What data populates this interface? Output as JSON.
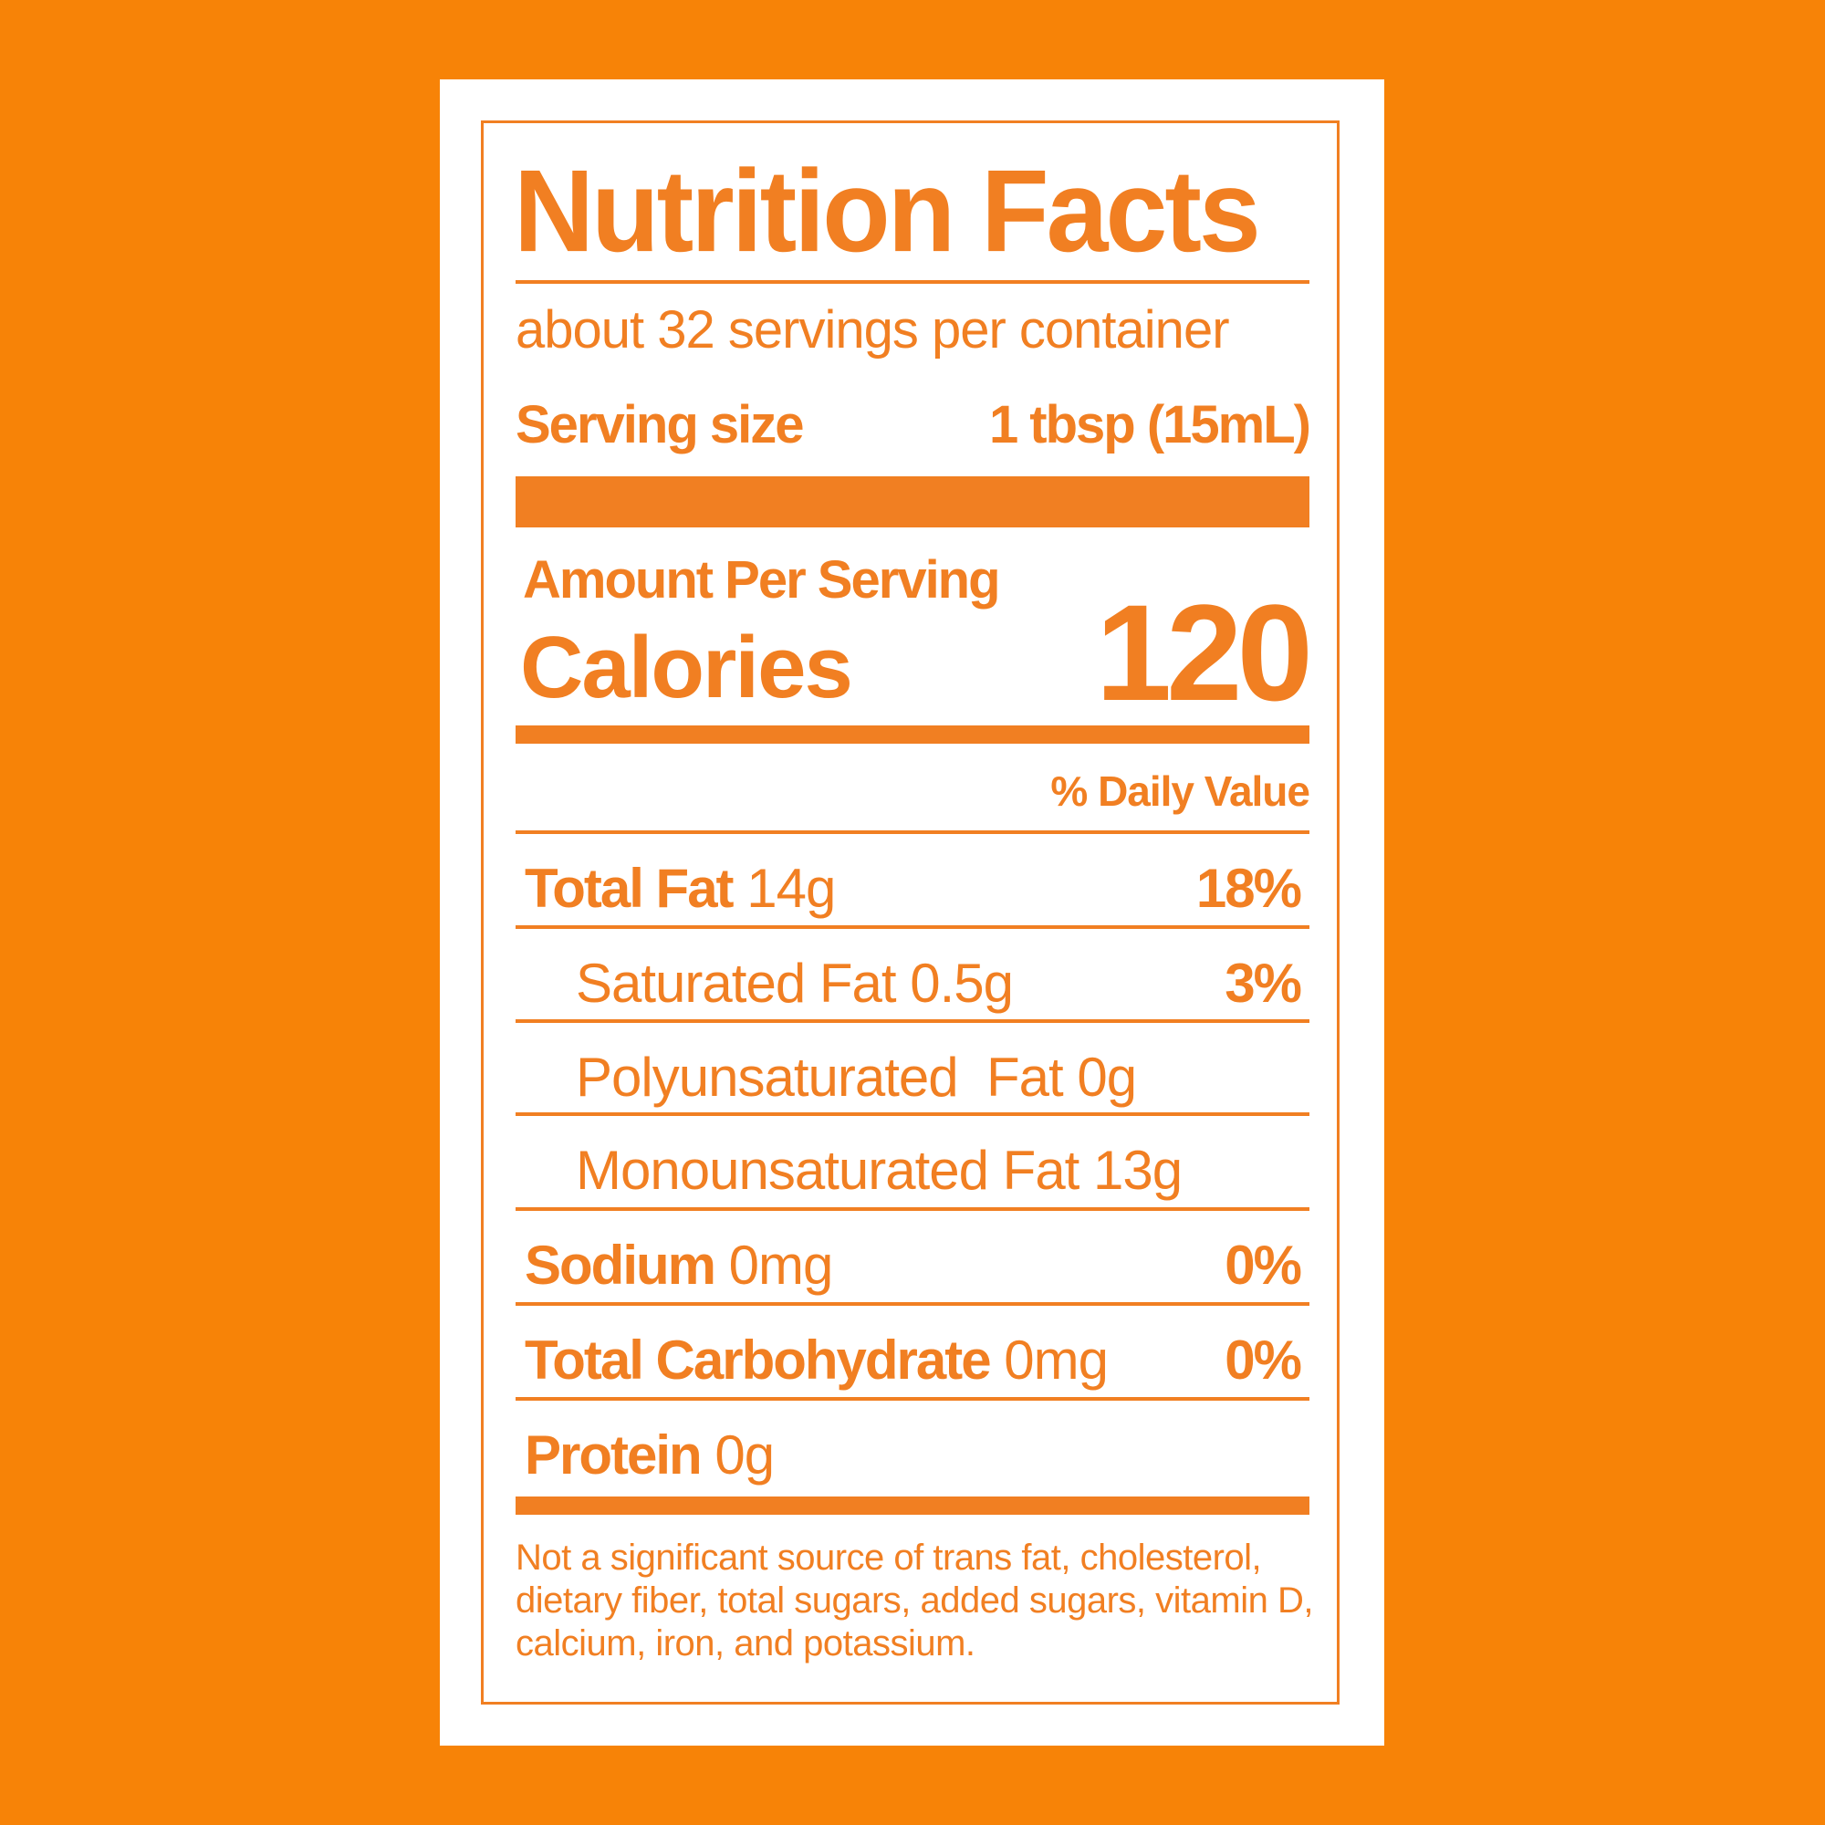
{
  "label": {
    "title": "Nutrition Facts",
    "servings_per_container": "about 32 servings per container",
    "serving_size_label": "Serving size",
    "serving_size_value": "1 tbsp (15mL)",
    "amount_per_serving": "Amount Per Serving",
    "calories_label": "Calories",
    "calories_value": "120",
    "daily_value_header": "% Daily Value",
    "nutrients": [
      {
        "name": "Total Fat",
        "amount": "14g",
        "dv": "18%"
      },
      {
        "name": "Saturated Fat 0.5g",
        "dv": "3%"
      },
      {
        "name": "Polyunsaturated  Fat 0g"
      },
      {
        "name": "Monounsaturated Fat 13g"
      },
      {
        "name": "Sodium",
        "amount": "0mg",
        "dv": "0%"
      },
      {
        "name": "Total Carbohydrate",
        "amount": "0mg",
        "dv": "0%"
      },
      {
        "name": "Protein",
        "amount": "0g"
      }
    ],
    "footnote": "Not a significant source of trans fat, cholesterol, dietary fiber, total sugars, added sugars, vitamin D, calcium, iron, and potassium."
  },
  "colors": {
    "background": "#F78307",
    "panel": "#FFFFFF",
    "ink": "#F17F22"
  }
}
